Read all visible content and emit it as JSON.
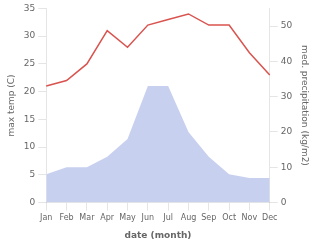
{
  "chart_data": {
    "type": "line",
    "categories": [
      "Jan",
      "Feb",
      "Mar",
      "Apr",
      "May",
      "Jun",
      "Jul",
      "Aug",
      "Sep",
      "Oct",
      "Nov",
      "Dec"
    ],
    "series": [
      {
        "type": "area",
        "color": "#c8d0f0",
        "axis": "y2",
        "values": [
          8,
          10,
          10,
          13,
          18,
          33,
          33,
          20,
          13,
          8,
          7,
          7
        ]
      },
      {
        "type": "line",
        "color": "#d9534f",
        "values": [
          21,
          22,
          25,
          31,
          28,
          32,
          33,
          34,
          32,
          32,
          27,
          23
        ]
      }
    ],
    "xlabel": "date (month)",
    "ylabel": "max temp (C)",
    "y2label": "med. precipitation (kg/m2)",
    "ylim": [
      0,
      35
    ],
    "yticks": [
      0,
      5,
      10,
      15,
      20,
      25,
      30,
      35
    ],
    "y2lim": [
      0,
      55
    ],
    "y2ticks": [
      0,
      10,
      20,
      30,
      40,
      50
    ],
    "grid": false
  }
}
